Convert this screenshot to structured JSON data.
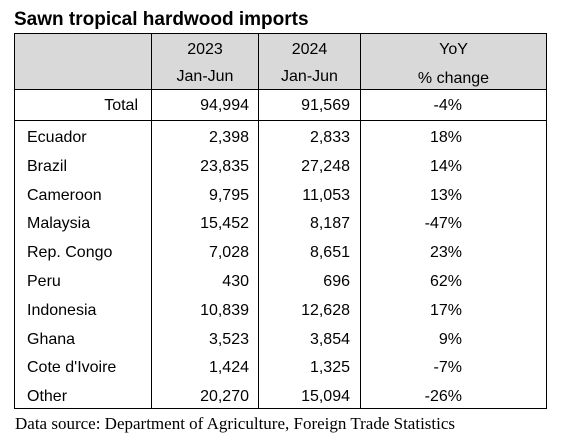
{
  "title": "Sawn tropical hardwood imports",
  "header": {
    "col_2023_line1": "2023",
    "col_2023_line2": "Jan-Jun",
    "col_2024_line1": "2024",
    "col_2024_line2": "Jan-Jun",
    "col_yoy_line1": "YoY",
    "col_yoy_line2": "% change"
  },
  "total": {
    "label": "Total",
    "v2023": "94,994",
    "v2024": "91,569",
    "yoy": "-4%"
  },
  "rows": [
    {
      "country": "Ecuador",
      "v2023": "2,398",
      "v2024": "2,833",
      "yoy": "18%"
    },
    {
      "country": "Brazil",
      "v2023": "23,835",
      "v2024": "27,248",
      "yoy": "14%"
    },
    {
      "country": "Cameroon",
      "v2023": "9,795",
      "v2024": "11,053",
      "yoy": "13%"
    },
    {
      "country": "Malaysia",
      "v2023": "15,452",
      "v2024": "8,187",
      "yoy": "-47%"
    },
    {
      "country": "Rep. Congo",
      "v2023": "7,028",
      "v2024": "8,651",
      "yoy": "23%"
    },
    {
      "country": "Peru",
      "v2023": "430",
      "v2024": "696",
      "yoy": "62%"
    },
    {
      "country": "Indonesia",
      "v2023": "10,839",
      "v2024": "12,628",
      "yoy": "17%"
    },
    {
      "country": "Ghana",
      "v2023": "3,523",
      "v2024": "3,854",
      "yoy": "9%"
    },
    {
      "country": "Cote d'Ivoire",
      "v2023": "1,424",
      "v2024": "1,325",
      "yoy": "-7%"
    },
    {
      "country": "Other",
      "v2023": "20,270",
      "v2024": "15,094",
      "yoy": "-26%"
    }
  ],
  "footer": "Data source:  Department of Agriculture, Foreign Trade Statistics",
  "colors": {
    "header_bg": "#d9d9d9",
    "border": "#000000"
  }
}
